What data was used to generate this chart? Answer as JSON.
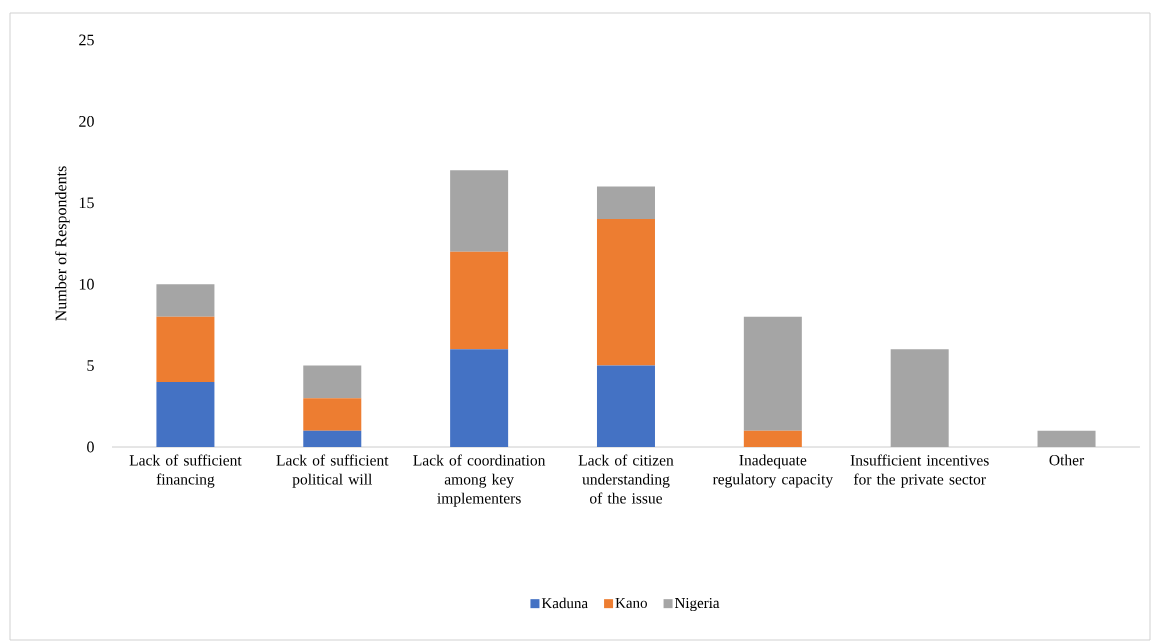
{
  "chart_data": {
    "type": "bar",
    "stacked": true,
    "ylabel": "Number of Respondents",
    "categories": [
      "Lack of sufficient financing",
      "Lack of sufficient political will",
      "Lack of coordination among key implementers",
      "Lack of citizen understanding of the issue",
      "Inadequate regulatory capacity",
      "Insufficient incentives for the private sector",
      "Other"
    ],
    "series": [
      {
        "name": "Kaduna",
        "color": "#4472c4",
        "values": [
          4,
          1,
          6,
          5,
          0,
          0,
          0
        ]
      },
      {
        "name": "Kano",
        "color": "#ed7d31",
        "values": [
          4,
          2,
          6,
          9,
          1,
          0,
          0
        ]
      },
      {
        "name": "Nigeria",
        "color": "#a5a5a5",
        "values": [
          2,
          2,
          5,
          2,
          7,
          6,
          1
        ]
      }
    ],
    "ylim": [
      0,
      25
    ],
    "yticks": [
      0,
      5,
      10,
      15,
      20,
      25
    ],
    "legend": "bottom"
  }
}
